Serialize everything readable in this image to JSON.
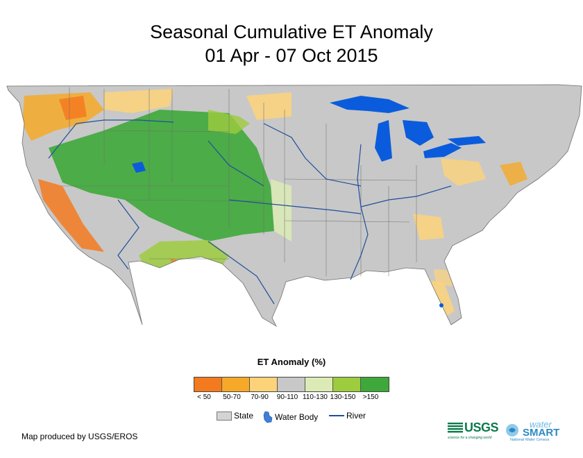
{
  "title": {
    "line1": "Seasonal Cumulative ET Anomaly",
    "line2": "01 Apr - 07 Oct 2015"
  },
  "map": {
    "region": "Contiguous United States",
    "background_color": "#c8c8c8",
    "water_color": "#0b5cdc",
    "river_color": "#1f4e9c",
    "state_border_color": "#6e6e6e"
  },
  "legend": {
    "title": "ET Anomaly (%)",
    "classes": [
      {
        "label": "< 50",
        "color": "#f47a20"
      },
      {
        "label": "50-70",
        "color": "#f6a928"
      },
      {
        "label": "70-90",
        "color": "#fdd37a"
      },
      {
        "label": "90-110",
        "color": "#c8c8c8"
      },
      {
        "label": "110-130",
        "color": "#dcebb5"
      },
      {
        "label": "130-150",
        "color": "#9dcc3f"
      },
      {
        "label": ">150",
        "color": "#3ea83a"
      }
    ],
    "key": {
      "state": "State",
      "water_body": "Water Body",
      "river": "River"
    }
  },
  "credit": "Map produced by USGS/EROS",
  "logos": {
    "usgs": {
      "word": "USGS",
      "tagline": "science for a changing world"
    },
    "watersmart": {
      "word1": "water",
      "word2": "SMART",
      "tagline": "National Water Census"
    }
  }
}
